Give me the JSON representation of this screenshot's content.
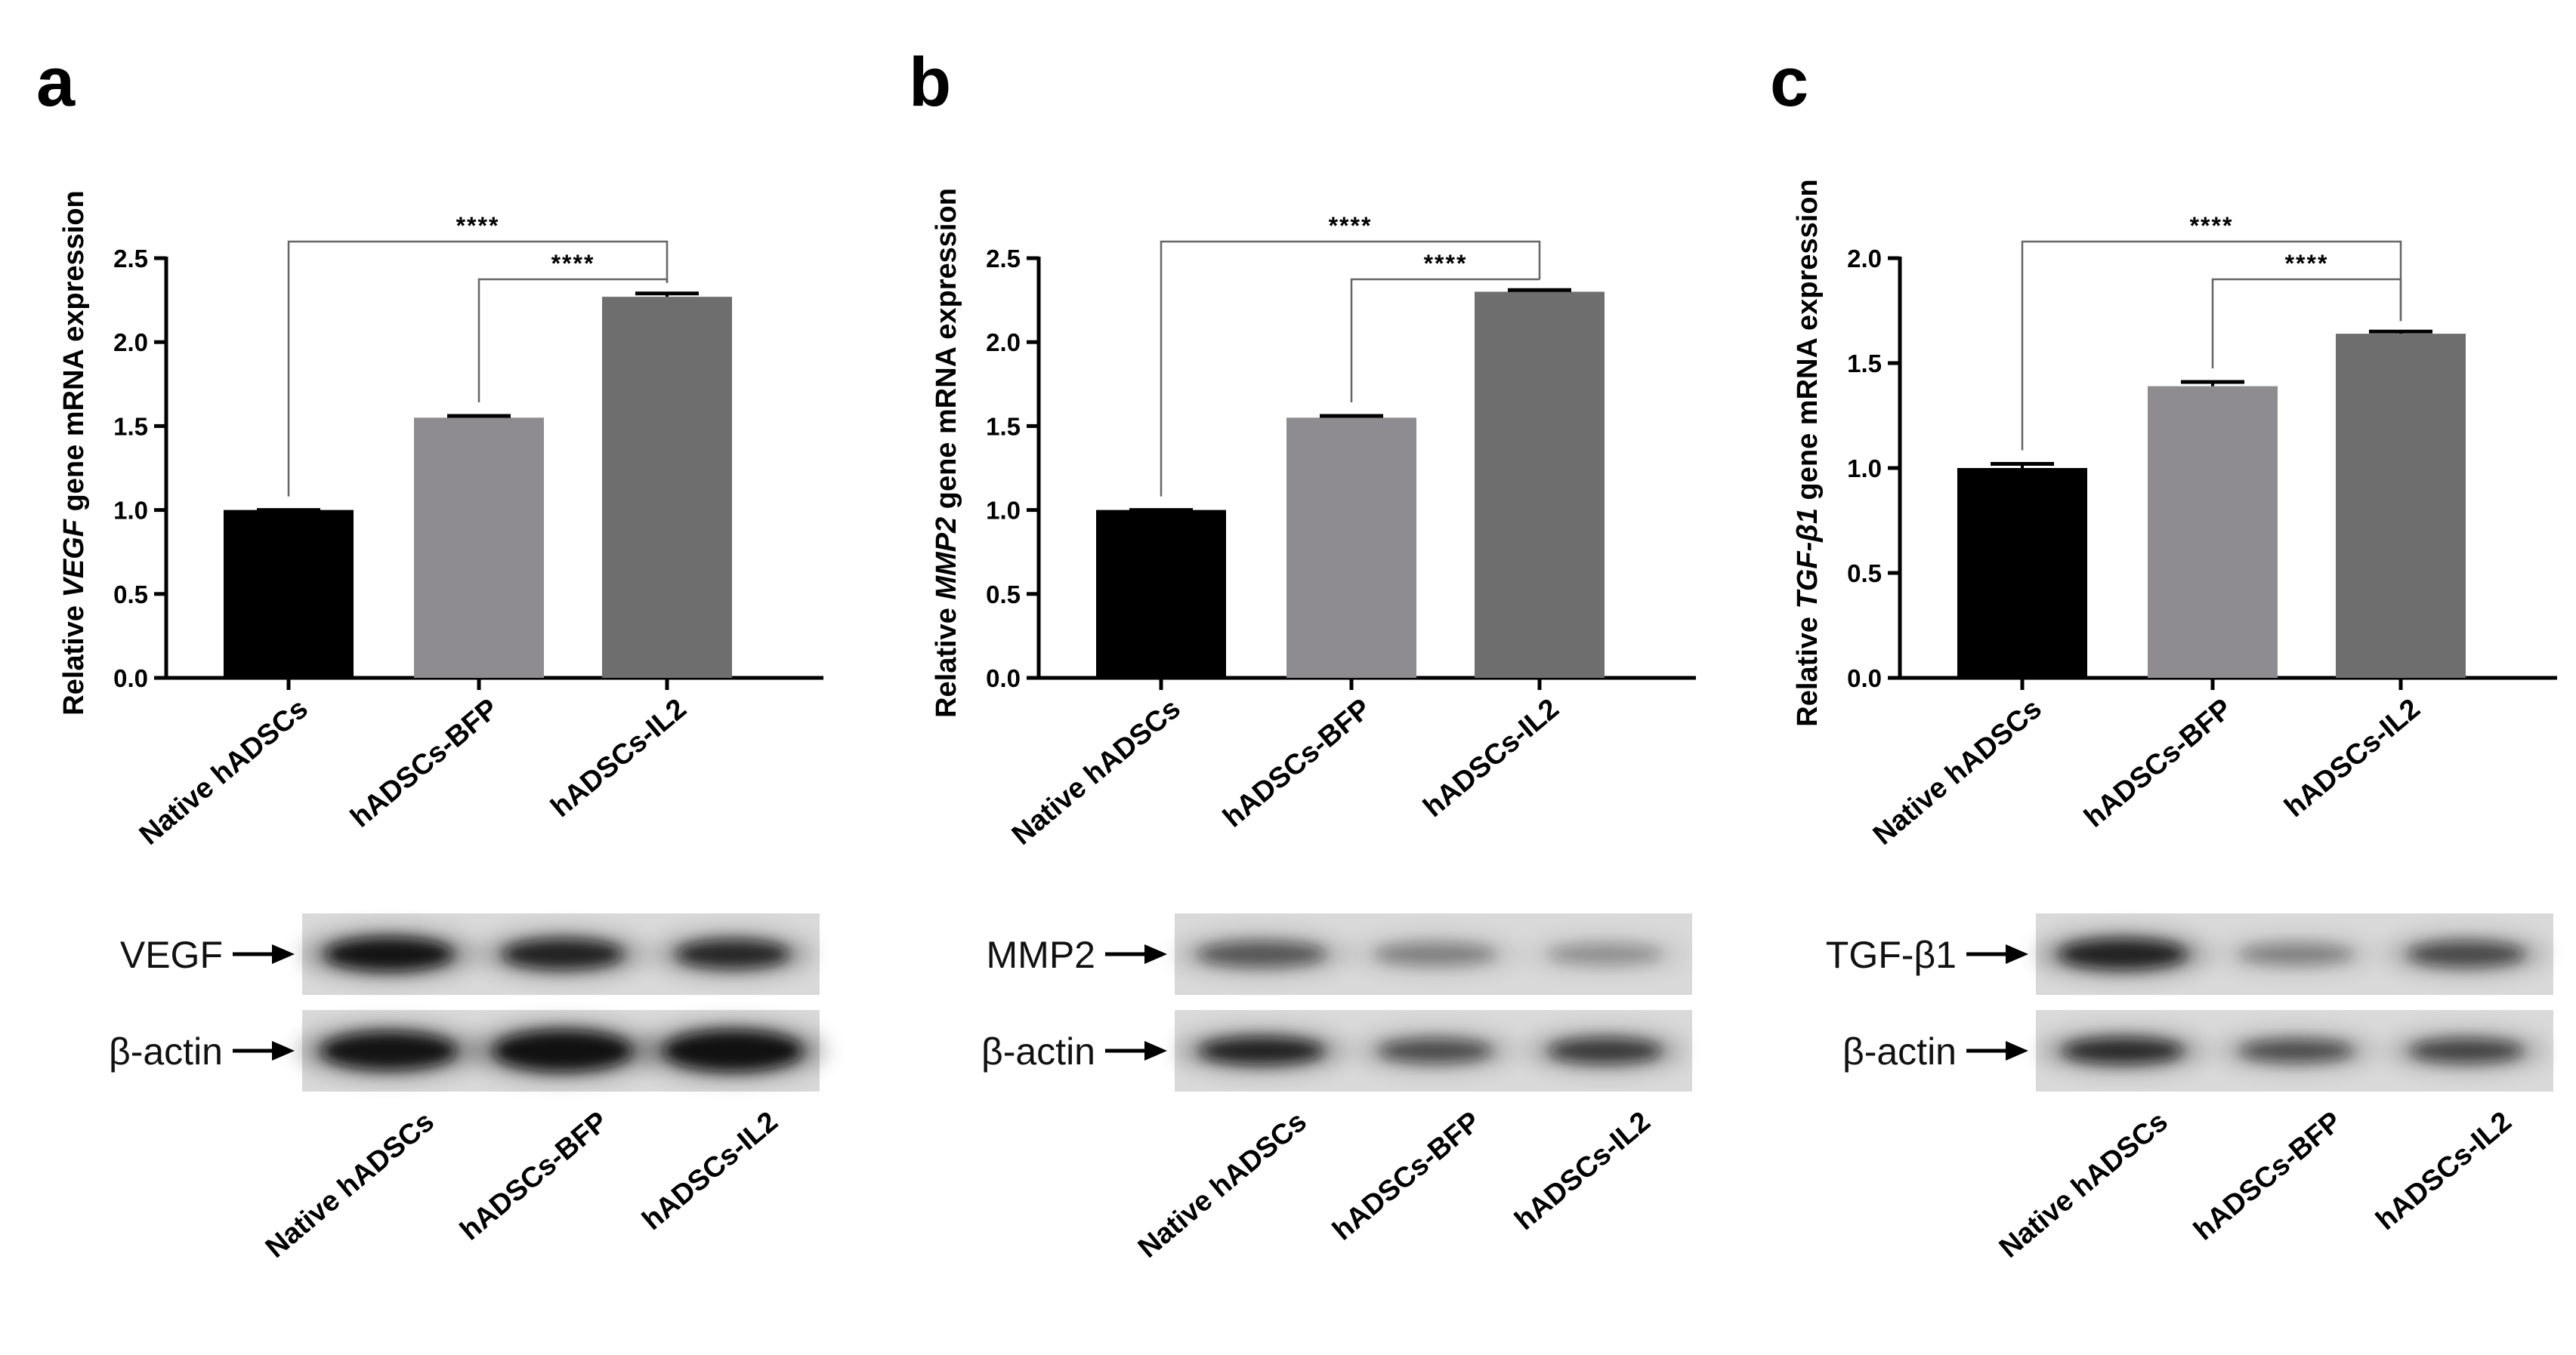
{
  "chart_data": [
    {
      "type": "bar",
      "panel": "a",
      "ylabel_prefix": "Relative ",
      "ylabel_gene": "VEGF",
      "ylabel_suffix": " gene mRNA expression",
      "categories": [
        "Native hADSCs",
        "hADSCs-BFP",
        "hADSCs-IL2"
      ],
      "values": [
        1.0,
        1.55,
        2.27
      ],
      "errors": [
        0.0,
        0.01,
        0.02
      ],
      "ylim": [
        0,
        2.5
      ],
      "yticks": [
        "0.0",
        "0.5",
        "1.0",
        "1.5",
        "2.0",
        "2.5"
      ],
      "colors": [
        "#000000",
        "#8e8c91",
        "#6e6e6e"
      ],
      "significance": [
        {
          "from": 0,
          "to": 2,
          "label": "****"
        },
        {
          "from": 1,
          "to": 2,
          "label": "****"
        }
      ],
      "blot": {
        "rows": [
          "VEGF",
          "β-actin"
        ],
        "categories": [
          "Native hADSCs",
          "hADSCs-BFP",
          "hADSCs-IL2"
        ]
      }
    },
    {
      "type": "bar",
      "panel": "b",
      "ylabel_prefix": "Relative ",
      "ylabel_gene": "MMP2",
      "ylabel_suffix": " gene mRNA expression",
      "categories": [
        "Native hADSCs",
        "hADSCs-BFP",
        "hADSCs-IL2"
      ],
      "values": [
        1.0,
        1.55,
        2.3
      ],
      "errors": [
        0.0,
        0.01,
        0.01
      ],
      "ylim": [
        0,
        2.5
      ],
      "yticks": [
        "0.0",
        "0.5",
        "1.0",
        "1.5",
        "2.0",
        "2.5"
      ],
      "colors": [
        "#000000",
        "#8e8c91",
        "#6e6e6e"
      ],
      "significance": [
        {
          "from": 0,
          "to": 2,
          "label": "****"
        },
        {
          "from": 1,
          "to": 2,
          "label": "****"
        }
      ],
      "blot": {
        "rows": [
          "MMP2",
          "β-actin"
        ],
        "categories": [
          "Native hADSCs",
          "hADSCs-BFP",
          "hADSCs-IL2"
        ]
      }
    },
    {
      "type": "bar",
      "panel": "c",
      "ylabel_prefix": "Relative ",
      "ylabel_gene": "TGF-β1",
      "ylabel_suffix": " gene mRNA expression",
      "categories": [
        "Native hADSCs",
        "hADSCs-BFP",
        "hADSCs-IL2"
      ],
      "values": [
        1.0,
        1.39,
        1.64
      ],
      "errors": [
        0.02,
        0.02,
        0.01
      ],
      "ylim": [
        0,
        2.0
      ],
      "yticks": [
        "0.0",
        "0.5",
        "1.0",
        "1.5",
        "2.0"
      ],
      "colors": [
        "#000000",
        "#8e8c91",
        "#6e6e6e"
      ],
      "significance": [
        {
          "from": 0,
          "to": 2,
          "label": "****"
        },
        {
          "from": 1,
          "to": 2,
          "label": "****"
        }
      ],
      "blot": {
        "rows": [
          "TGF-β1",
          "β-actin"
        ],
        "categories": [
          "Native hADSCs",
          "hADSCs-BFP",
          "hADSCs-IL2"
        ]
      }
    }
  ]
}
